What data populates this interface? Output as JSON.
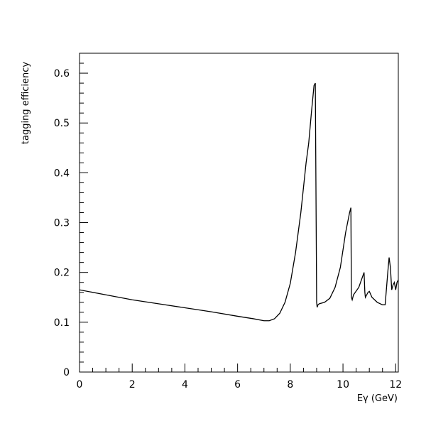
{
  "chart_data": {
    "type": "line",
    "title": "",
    "xlabel": "Eγ (GeV)",
    "ylabel": "tagging efficiency",
    "xlim": [
      0,
      12.1
    ],
    "ylim": [
      0,
      0.64
    ],
    "x_ticks": [
      0,
      2,
      4,
      6,
      8,
      10,
      12
    ],
    "y_ticks": [
      0,
      0.1,
      0.2,
      0.3,
      0.4,
      0.5,
      0.6
    ],
    "x_tick_labels": [
      "0",
      "2",
      "4",
      "6",
      "8",
      "10",
      "12"
    ],
    "y_tick_labels": [
      "0",
      "0.1",
      "0.2",
      "0.3",
      "0.4",
      "0.5",
      "0.6"
    ],
    "grid": false,
    "line_color": "#000000",
    "series": [
      {
        "x": [
          0,
          1,
          2,
          3,
          4,
          5,
          6,
          6.6,
          7.0,
          7.2,
          7.4,
          7.6,
          7.8,
          8.0,
          8.2,
          8.4,
          8.6,
          8.7,
          8.8,
          8.9,
          8.95,
          9.0,
          9.02,
          9.05,
          9.1,
          9.3,
          9.5,
          9.7,
          9.9,
          10.1,
          10.25,
          10.3,
          10.32,
          10.35,
          10.4,
          10.6,
          10.8,
          10.83,
          10.85,
          10.95,
          11.0,
          11.1,
          11.2,
          11.3,
          11.5,
          11.6,
          11.7,
          11.75,
          11.8,
          11.85,
          11.9,
          11.95,
          12.0,
          12.05,
          12.1
        ],
        "y": [
          0.165,
          0.155,
          0.145,
          0.137,
          0.129,
          0.121,
          0.112,
          0.107,
          0.103,
          0.103,
          0.107,
          0.118,
          0.14,
          0.178,
          0.24,
          0.32,
          0.42,
          0.46,
          0.52,
          0.575,
          0.58,
          0.14,
          0.13,
          0.135,
          0.137,
          0.14,
          0.148,
          0.17,
          0.21,
          0.28,
          0.32,
          0.33,
          0.15,
          0.145,
          0.155,
          0.17,
          0.2,
          0.16,
          0.15,
          0.16,
          0.162,
          0.15,
          0.145,
          0.14,
          0.135,
          0.135,
          0.2,
          0.23,
          0.21,
          0.165,
          0.175,
          0.18,
          0.165,
          0.18,
          0.185
        ]
      }
    ]
  }
}
